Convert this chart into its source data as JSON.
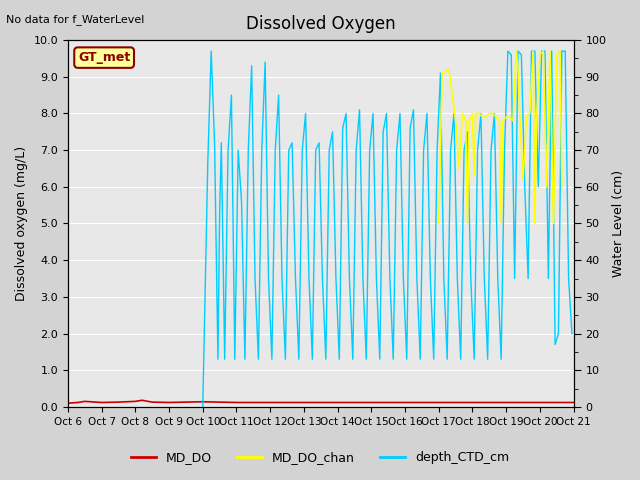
{
  "title": "Dissolved Oxygen",
  "top_left_text": "No data for f_WaterLevel",
  "ylabel_left": "Dissolved oxygen (mg/L)",
  "ylabel_right": "Water Level (cm)",
  "ylim_left": [
    0,
    10
  ],
  "ylim_right": [
    0,
    100
  ],
  "xlim": [
    0,
    15
  ],
  "xtick_labels": [
    "Oct 6",
    "Oct 7",
    "Oct 8",
    "Oct 9",
    "Oct 10",
    "Oct 11",
    "Oct 12",
    "Oct 13",
    "Oct 14",
    "Oct 15",
    "Oct 16",
    "Oct 17",
    "Oct 18",
    "Oct 19",
    "Oct 20",
    "Oct 21"
  ],
  "xtick_positions": [
    0,
    1,
    2,
    3,
    4,
    5,
    6,
    7,
    8,
    9,
    10,
    11,
    12,
    13,
    14,
    15
  ],
  "gt_met_label": "GT_met",
  "background_color": "#d3d3d3",
  "plot_bg_color": "#e8e8e8",
  "legend_entries": [
    "MD_DO",
    "MD_DO_chan",
    "depth_CTD_cm"
  ],
  "legend_colors": [
    "#cc0000",
    "#ffff00",
    "#00ccff"
  ],
  "md_do_x": [
    0,
    0.3,
    0.5,
    1.0,
    1.5,
    2.0,
    2.2,
    2.5,
    3.0,
    3.5,
    4.0,
    4.5,
    5.0,
    5.5,
    6.0,
    6.5,
    7.0,
    7.5,
    8.0,
    8.5,
    9.0,
    9.5,
    10.0,
    10.5,
    11.0,
    11.5,
    12.0,
    12.5,
    13.0,
    13.5,
    14.0,
    14.5,
    15.0
  ],
  "md_do_y": [
    0.1,
    0.12,
    0.15,
    0.12,
    0.13,
    0.15,
    0.18,
    0.13,
    0.12,
    0.13,
    0.14,
    0.13,
    0.12,
    0.12,
    0.12,
    0.12,
    0.12,
    0.12,
    0.12,
    0.12,
    0.12,
    0.12,
    0.12,
    0.12,
    0.12,
    0.12,
    0.12,
    0.12,
    0.12,
    0.12,
    0.12,
    0.12,
    0.12
  ],
  "md_do_chan_x": [
    11.0,
    11.1,
    11.3,
    11.5,
    11.6,
    11.7,
    11.8,
    11.85,
    11.9,
    12.0,
    12.05,
    12.1,
    12.2,
    12.3,
    12.4,
    12.5,
    12.6,
    12.7,
    12.8,
    12.85,
    12.9,
    13.0,
    13.1,
    13.2,
    13.3,
    13.35,
    13.4,
    13.5,
    13.6,
    13.7,
    13.8,
    13.85,
    13.9,
    14.0,
    14.1,
    14.2,
    14.25,
    14.3,
    14.4,
    14.5,
    14.6,
    14.65
  ],
  "md_do_chan_y": [
    50,
    91,
    92,
    78,
    65,
    80,
    78,
    50,
    78,
    80,
    63,
    80,
    80,
    79,
    79,
    80,
    80,
    79,
    78,
    50,
    78,
    79,
    79,
    78,
    97,
    92,
    80,
    62,
    79,
    80,
    97,
    50,
    79,
    96,
    97,
    60,
    80,
    97,
    50,
    96,
    97,
    60
  ],
  "depth_ctd_x": [
    4.0,
    4.15,
    4.25,
    4.35,
    4.45,
    4.5,
    4.55,
    4.65,
    4.75,
    4.85,
    4.95,
    5.05,
    5.15,
    5.25,
    5.35,
    5.45,
    5.55,
    5.65,
    5.75,
    5.85,
    5.95,
    6.05,
    6.15,
    6.25,
    6.35,
    6.45,
    6.55,
    6.65,
    6.75,
    6.85,
    6.95,
    7.05,
    7.15,
    7.25,
    7.35,
    7.45,
    7.55,
    7.65,
    7.75,
    7.85,
    7.95,
    8.05,
    8.15,
    8.25,
    8.35,
    8.45,
    8.55,
    8.65,
    8.75,
    8.85,
    8.95,
    9.05,
    9.15,
    9.25,
    9.35,
    9.45,
    9.55,
    9.65,
    9.75,
    9.85,
    9.95,
    10.05,
    10.15,
    10.25,
    10.35,
    10.45,
    10.55,
    10.65,
    10.75,
    10.85,
    10.95,
    11.05,
    11.15,
    11.25,
    11.35,
    11.45,
    11.55,
    11.65,
    11.75,
    11.85,
    11.95,
    12.05,
    12.15,
    12.25,
    12.35,
    12.45,
    12.55,
    12.65,
    12.75,
    12.85,
    12.95,
    13.05,
    13.15,
    13.25,
    13.35,
    13.45,
    13.55,
    13.65,
    13.75,
    13.85,
    13.95,
    14.05,
    14.15,
    14.25,
    14.35,
    14.45,
    14.55,
    14.65,
    14.75,
    14.85,
    14.95
  ],
  "depth_ctd_y": [
    0,
    67,
    97,
    72,
    13,
    53,
    72,
    13,
    70,
    85,
    13,
    70,
    56,
    13,
    70,
    93,
    35,
    13,
    70,
    94,
    35,
    13,
    70,
    85,
    35,
    13,
    70,
    72,
    35,
    13,
    70,
    80,
    35,
    13,
    70,
    72,
    35,
    13,
    70,
    75,
    35,
    13,
    76,
    80,
    35,
    13,
    70,
    81,
    35,
    13,
    70,
    80,
    35,
    13,
    75,
    80,
    35,
    13,
    70,
    80,
    35,
    13,
    76,
    81,
    35,
    13,
    70,
    80,
    35,
    13,
    70,
    91,
    35,
    13,
    70,
    80,
    35,
    13,
    70,
    75,
    35,
    13,
    70,
    80,
    35,
    13,
    70,
    80,
    35,
    13,
    70,
    97,
    96,
    35,
    97,
    96,
    60,
    35,
    97,
    97,
    60,
    97,
    97,
    35,
    97,
    17,
    20,
    97,
    97,
    35,
    20
  ]
}
